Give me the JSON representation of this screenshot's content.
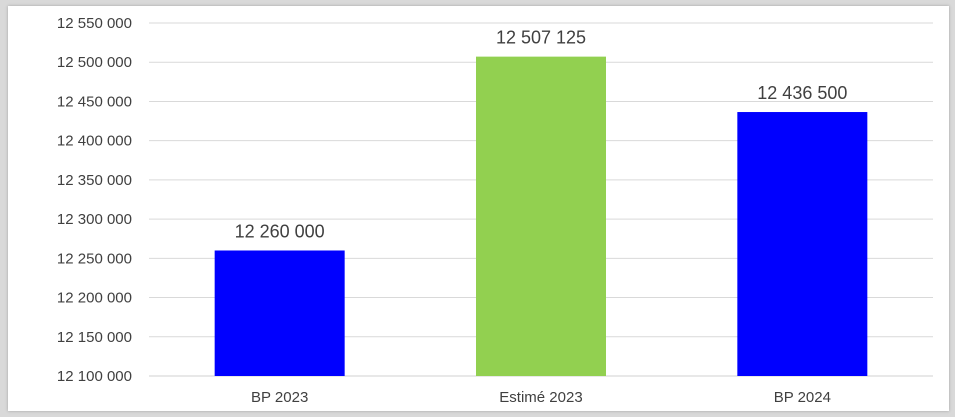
{
  "chart_data": {
    "type": "bar",
    "categories": [
      "BP 2023",
      "Estimé 2023",
      "BP 2024"
    ],
    "values": [
      12260000,
      12507125,
      12436500
    ],
    "value_labels": [
      "12 260 000",
      "12 507 125",
      "12 436 500"
    ],
    "bar_colors": [
      "#0000ff",
      "#92d050",
      "#0000ff"
    ],
    "title": "",
    "xlabel": "",
    "ylabel": "",
    "ylim": [
      12100000,
      12550000
    ],
    "yticks": [
      12100000,
      12150000,
      12200000,
      12250000,
      12300000,
      12350000,
      12400000,
      12450000,
      12500000,
      12550000
    ],
    "ytick_labels": [
      "12 100 000",
      "12 150 000",
      "12 200 000",
      "12 250 000",
      "12 300 000",
      "12 350 000",
      "12 400 000",
      "12 450 000",
      "12 500 000",
      "12 550 000"
    ],
    "grid": true,
    "legend": "none",
    "gridline_color": "#d9d9d9"
  }
}
